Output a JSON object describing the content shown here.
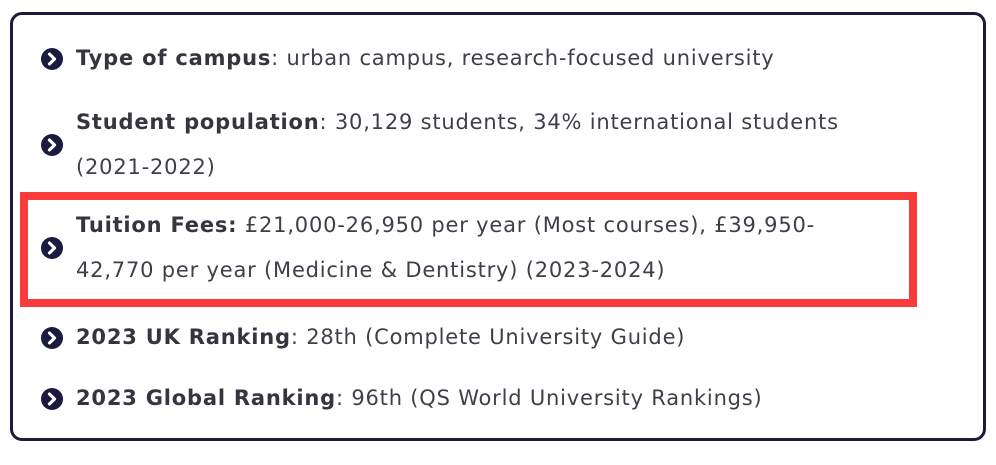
{
  "colors": {
    "navy": "#1a1b3e",
    "highlight_red": "#f93b3b",
    "text": "#3e3f48",
    "text_bold": "#34353e",
    "background": "#ffffff"
  },
  "icons": {
    "bullet": "chevron-right-circle"
  },
  "facts": {
    "items": [
      {
        "id": "campus-type",
        "highlighted": false,
        "segments": [
          {
            "text": "Type of campus",
            "bold": true
          },
          {
            "text": ": urban campus, research-focused university"
          }
        ]
      },
      {
        "id": "student-population",
        "highlighted": false,
        "segments": [
          {
            "text": "Student population",
            "bold": true
          },
          {
            "text": ": 30,129 students, 34% international students"
          },
          {
            "linebreak": true
          },
          {
            "text": "(2021-2022)"
          }
        ]
      },
      {
        "id": "tuition-fees",
        "highlighted": true,
        "segments": [
          {
            "text": "Tuition Fees:",
            "bold": true
          },
          {
            "text": " £21,000-26,950 per year (Most courses), £39,950-"
          },
          {
            "linebreak": true
          },
          {
            "text": "42,770 per year (Medicine & Dentistry) (2023-2024)"
          }
        ]
      },
      {
        "id": "uk-ranking",
        "highlighted": false,
        "segments": [
          {
            "text": "2023 UK Ranking",
            "bold": true
          },
          {
            "text": ": 28th (Complete University Guide)"
          }
        ]
      },
      {
        "id": "global-ranking",
        "highlighted": false,
        "segments": [
          {
            "text": "2023 Global Ranking",
            "bold": true
          },
          {
            "text": ": 96th (QS World University Rankings)"
          }
        ]
      }
    ]
  }
}
